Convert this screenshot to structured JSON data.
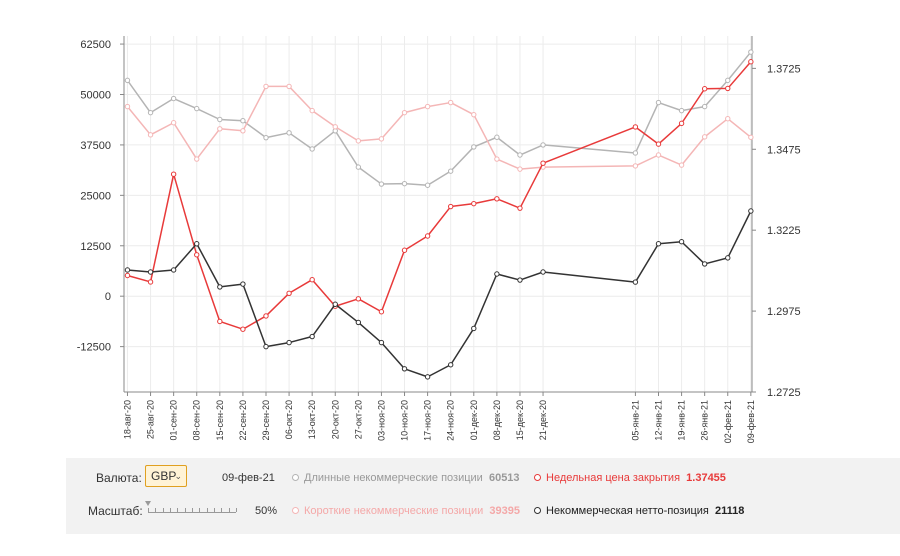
{
  "chart_data": {
    "type": "line",
    "x": [
      "18-авг-20",
      "25-авг-20",
      "01-сен-20",
      "08-сен-20",
      "15-сен-20",
      "22-сен-20",
      "29-сен-20",
      "06-окт-20",
      "13-окт-20",
      "20-окт-20",
      "27-окт-20",
      "03-ноя-20",
      "10-ноя-20",
      "17-ноя-20",
      "24-ноя-20",
      "01-дек-20",
      "08-дек-20",
      "15-дек-20",
      "21-дек-20",
      "05-янв-21",
      "12-янв-21",
      "19-янв-21",
      "26-янв-21",
      "02-фев-21",
      "09-фев-21"
    ],
    "x_index": [
      0,
      1,
      2,
      3,
      4,
      5,
      6,
      7,
      8,
      9,
      10,
      11,
      12,
      13,
      14,
      15,
      16,
      17,
      18,
      22,
      23,
      24,
      25,
      26,
      27
    ],
    "x_range": [
      -0.15,
      27.05
    ],
    "x_tick_labels": [
      "18-авг-20",
      "25-авг-20",
      "01-сен-20",
      "08-сен-20",
      "15-сен-20",
      "22-сен-20",
      "29-сен-20",
      "06-окт-20",
      "13-окт-20",
      "20-окт-20",
      "27-окт-20",
      "03-ноя-20",
      "10-ноя-20",
      "17-ноя-20",
      "24-ноя-20",
      "01-дек-20",
      "08-дек-20",
      "15-дек-20",
      "21-дек-20",
      "05-янв-21",
      "12-янв-21",
      "19-янв-21",
      "26-янв-21",
      "02-фев-21",
      "09-фев-21"
    ],
    "y_left": {
      "ticks": [
        -12500,
        0,
        12500,
        25000,
        37500,
        50000,
        62500
      ],
      "tick_labels": [
        "-12500",
        "0",
        "12500",
        "25000",
        "37500",
        "50000",
        "62500"
      ],
      "range": [
        -23750,
        64500
      ]
    },
    "y_right": {
      "ticks": [
        1.2725,
        1.2975,
        1.3225,
        1.3475,
        1.3725
      ],
      "tick_labels": [
        "1.2725",
        "1.2975",
        "1.3225",
        "1.3475",
        "1.3725"
      ],
      "range": [
        1.2725,
        1.3825
      ]
    },
    "grid": true,
    "series": [
      {
        "name": "Длинные некоммерческие позиции",
        "axis": "left",
        "color": "#b4b4b4",
        "values": [
          53500,
          45500,
          49000,
          46500,
          43800,
          43500,
          39300,
          40500,
          36500,
          41000,
          32000,
          27800,
          27900,
          27500,
          31000,
          37000,
          39400,
          35000,
          37500,
          35500,
          48000,
          46000,
          47000,
          53500,
          60513
        ]
      },
      {
        "name": "Короткие некоммерческие позиции",
        "axis": "left",
        "color": "#f4b6b6",
        "values": [
          47000,
          40000,
          43000,
          34000,
          41500,
          41000,
          52000,
          52000,
          46000,
          42000,
          38500,
          39000,
          45500,
          47000,
          48000,
          45000,
          34000,
          31500,
          32000,
          32300,
          35000,
          32500,
          39500,
          44000,
          39395
        ]
      },
      {
        "name": "Недельная цена закрытия",
        "axis": "right",
        "color": "#e83a3a",
        "values": [
          1.3085,
          1.3065,
          1.3398,
          1.3149,
          1.2943,
          1.2919,
          1.296,
          1.303,
          1.3072,
          1.299,
          1.3013,
          1.2973,
          1.3163,
          1.3207,
          1.3298,
          1.3307,
          1.3322,
          1.3293,
          1.3432,
          1.3544,
          1.3491,
          1.3555,
          1.3662,
          1.3663,
          1.37455
        ]
      },
      {
        "name": "Некоммерческая нетто-позиция",
        "axis": "left",
        "color": "#333333",
        "values": [
          6500,
          6000,
          6500,
          13000,
          2300,
          3000,
          -12500,
          -11500,
          -10000,
          -2000,
          -6500,
          -11500,
          -18000,
          -20000,
          -17000,
          -8000,
          5500,
          4000,
          6000,
          3500,
          13000,
          13500,
          8000,
          9500,
          21118
        ]
      }
    ]
  },
  "controls": {
    "currency_label": "Валюта:",
    "currency_value": "GBP",
    "date": "09-фев-21",
    "scale_label": "Масштаб:",
    "scale_percent": "50%",
    "scale_level": 0.0
  },
  "legend": {
    "long_label": "Длинные некоммерческие позиции",
    "long_value": "60513",
    "long_color": "#b4b4b4",
    "short_label": "Короткие некоммерческие позиции",
    "short_value": "39395",
    "short_color": "#f4b6b6",
    "price_label": "Недельная цена закрытия",
    "price_value": "1.37455",
    "price_color": "#e83a3a",
    "net_label": "Некоммерческая нетто-позиция",
    "net_value": "21118",
    "net_color": "#333333"
  }
}
